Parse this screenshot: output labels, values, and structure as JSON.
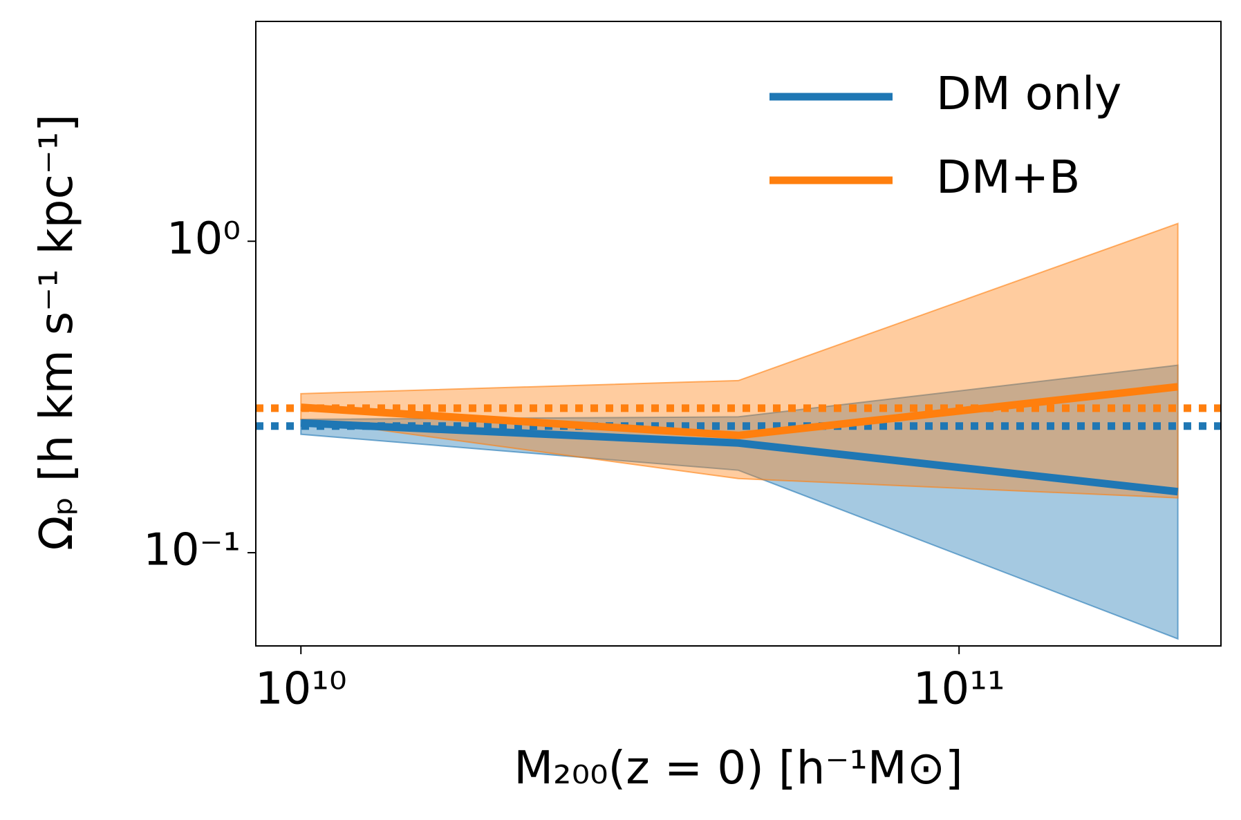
{
  "chart_data": {
    "type": "line",
    "xlabel": "M₂₀₀(z = 0) [h⁻¹M⊙]",
    "ylabel": "Ωₚ [h km s⁻¹ kpc⁻¹]",
    "xscale": "log",
    "yscale": "log",
    "x": [
      10000000000,
      46200000000,
      215000000000
    ],
    "xlim": [
      8540000000,
      250000000000
    ],
    "ylim": [
      0.0502,
      5.08
    ],
    "xticks": [
      {
        "value": 10000000000,
        "label": "10¹⁰"
      },
      {
        "value": 100000000000,
        "label": "10¹¹"
      }
    ],
    "yticks": [
      {
        "value": 0.1,
        "label": "10⁻¹"
      },
      {
        "value": 1,
        "label": "10⁰"
      }
    ],
    "legend": "upper right",
    "band_opacity": 0.4,
    "series": [
      {
        "name": "DM only",
        "color": "#1f77b4",
        "values": [
          0.261,
          0.225,
          0.157
        ],
        "lower": [
          0.24,
          0.184,
          0.0529
        ],
        "upper": [
          0.268,
          0.273,
          0.4
        ]
      },
      {
        "name": "DM+B",
        "color": "#ff7f0e",
        "values": [
          0.293,
          0.238,
          0.341
        ],
        "lower": [
          0.268,
          0.173,
          0.15
        ],
        "upper": [
          0.324,
          0.357,
          1.14
        ]
      }
    ],
    "hlines": [
      {
        "value": 0.291,
        "color": "#ff7f0e"
      },
      {
        "value": 0.255,
        "color": "#1f77b4"
      }
    ]
  }
}
